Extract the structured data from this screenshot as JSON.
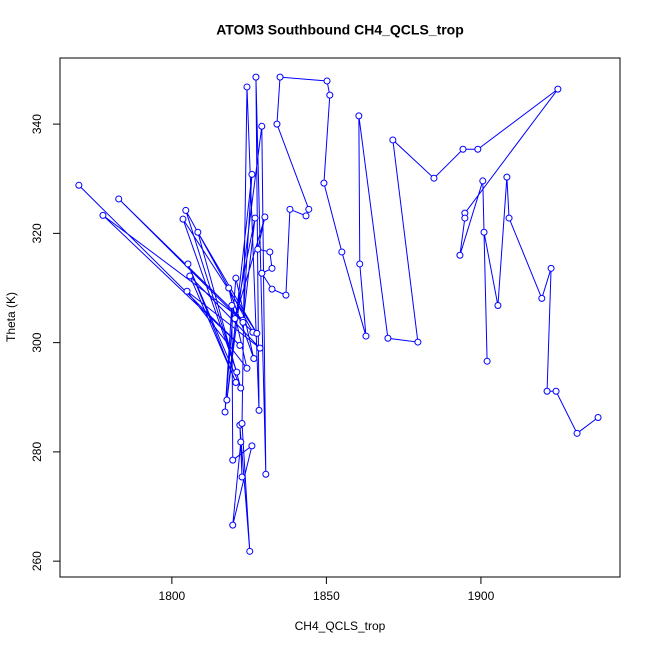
{
  "chart_data": {
    "type": "line",
    "title": "ATOM3 Southbound CH4_QCLS_trop",
    "xlabel": "CH4_QCLS_trop",
    "ylabel": "Theta (K)",
    "x": [
      1769.9,
      1822.0,
      1777.7,
      1823.0,
      1782.8,
      1826.2,
      1804.5,
      1821.0,
      1803.6,
      1827.5,
      1808.4,
      1822.3,
      1805.2,
      1820.7,
      1805.8,
      1828.5,
      1804.9,
      1824.3,
      1818.4,
      1826.5,
      1820.7,
      1817.2,
      1819.4,
      1819.7,
      1825.9,
      1819.7,
      1822.3,
      1822.7,
      1822.0,
      1825.2,
      1822.7,
      1824.3,
      1828.2,
      1827.2,
      1830.4,
      1829.1,
      1817.8,
      1825.9,
      1823.0,
      1826.9,
      1820.4,
      1830.1,
      1827.8,
      1831.7,
      1832.4,
      1829.1,
      1832.4,
      1836.9,
      1838.2,
      1843.4,
      1844.3,
      1834.0,
      1835.0,
      1850.2,
      1851.1,
      1849.2,
      1855.0,
      1862.8,
      1860.8,
      1860.5,
      1869.9,
      1879.6,
      1871.5,
      1884.8,
      1894.2,
      1899.0,
      1924.9,
      1894.8,
      1894.8,
      1893.2,
      1900.6,
      1902.0,
      1901.0,
      1905.5,
      1908.4,
      1909.1,
      1919.7,
      1922.7,
      1921.4,
      1924.3,
      1931.1,
      1937.9
    ],
    "values": [
      328.8,
      299.5,
      323.3,
      304.1,
      326.3,
      301.9,
      324.2,
      294.6,
      322.6,
      301.7,
      320.2,
      291.7,
      314.4,
      292.7,
      312.2,
      299.0,
      309.4,
      295.3,
      310.0,
      297.1,
      311.8,
      287.3,
      306.8,
      278.5,
      281.1,
      266.6,
      281.8,
      275.4,
      284.9,
      261.8,
      285.2,
      346.8,
      287.6,
      348.6,
      275.9,
      339.6,
      289.5,
      330.8,
      303.7,
      322.8,
      304.4,
      323.0,
      317.1,
      316.6,
      313.6,
      312.7,
      309.8,
      308.7,
      324.4,
      323.2,
      324.4,
      340.0,
      348.6,
      347.9,
      345.3,
      329.2,
      316.6,
      301.2,
      314.4,
      341.5,
      300.8,
      300.1,
      337.1,
      330.1,
      335.4,
      335.4,
      346.4,
      323.7,
      322.8,
      316.0,
      329.6,
      296.6,
      320.2,
      306.8,
      330.3,
      322.8,
      308.1,
      313.6,
      291.1,
      291.1,
      283.4,
      286.3
    ],
    "color": "#0000ff",
    "points": true,
    "xlim": [
      1763.8,
      1945.0
    ],
    "ylim": [
      257.1,
      352.1
    ],
    "xticks": [
      1800,
      1850,
      1900
    ],
    "yticks": [
      260,
      280,
      300,
      320,
      340
    ]
  }
}
